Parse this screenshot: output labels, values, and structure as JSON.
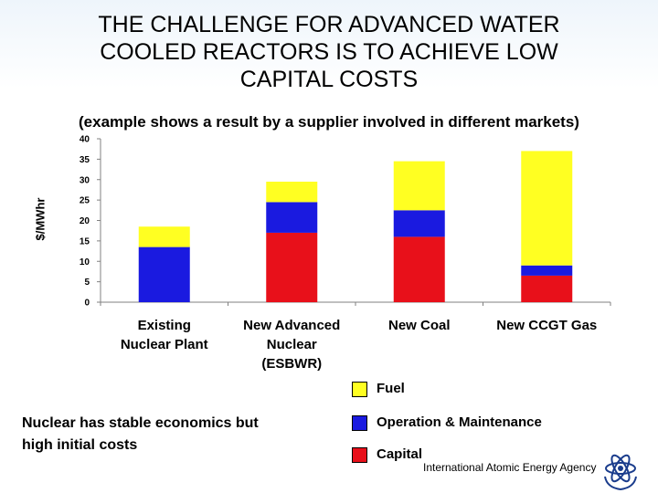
{
  "title_lines": [
    "THE CHALLENGE FOR ADVANCED WATER",
    "COOLED REACTORS IS TO ACHIEVE LOW",
    "CAPITAL COSTS"
  ],
  "subtitle": "(example shows a result by a supplier involved in different markets)",
  "note_lines": [
    "Nuclear has stable economics but",
    "high initial costs"
  ],
  "footer": "International Atomic Energy Agency",
  "logo_icon": "iaea-logo-icon",
  "chart_data": {
    "type": "bar",
    "stacked": true,
    "ylabel": "$/MWhr",
    "ylim": [
      0,
      40
    ],
    "yticks": [
      0,
      5,
      10,
      15,
      20,
      25,
      30,
      35,
      40
    ],
    "grid": false,
    "legend_position": "bottom-right",
    "categories": [
      [
        "Existing",
        "Nuclear Plant"
      ],
      [
        "New Advanced",
        "Nuclear",
        "(ESBWR)"
      ],
      [
        "New Coal"
      ],
      [
        "New CCGT Gas"
      ]
    ],
    "series": [
      {
        "name": "Capital",
        "color": "#e8101a",
        "values": [
          0,
          17,
          16,
          6.5
        ]
      },
      {
        "name": "Operation & Maintenance",
        "color": "#1a1ae0",
        "values": [
          13.5,
          7.5,
          6.5,
          2.5
        ]
      },
      {
        "name": "Fuel",
        "color": "#ffff22",
        "values": [
          5,
          5,
          12,
          28
        ]
      }
    ],
    "legend_order": [
      "Fuel",
      "Operation & Maintenance",
      "Capital"
    ]
  }
}
